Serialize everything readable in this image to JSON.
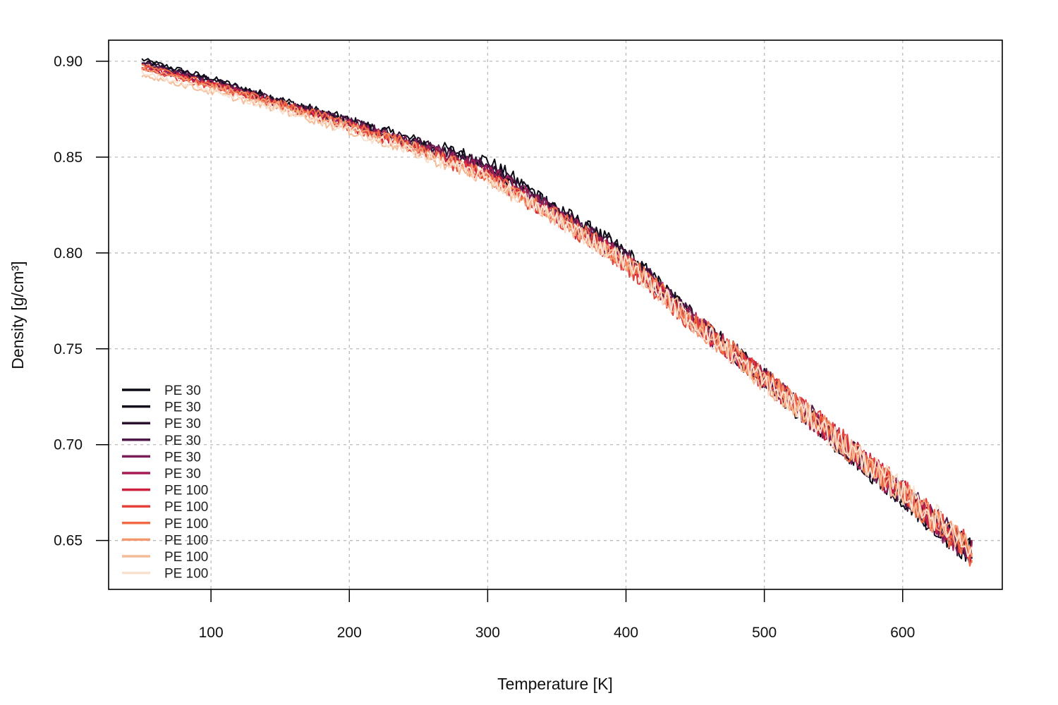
{
  "chart_data": {
    "type": "line",
    "title": "",
    "xlabel": "Temperature [K]",
    "ylabel": "Density [g/cm³]",
    "xlim": [
      26,
      672
    ],
    "ylim": [
      0.6245,
      0.911
    ],
    "xticks": [
      100,
      200,
      300,
      400,
      500,
      600
    ],
    "xtick_labels": [
      "100",
      "200",
      "300",
      "400",
      "500",
      "600"
    ],
    "yticks": [
      0.65,
      0.7,
      0.75,
      0.8,
      0.85,
      0.9
    ],
    "ytick_labels": [
      "0.65",
      "0.70",
      "0.75",
      "0.80",
      "0.85",
      "0.90"
    ],
    "grid": true,
    "legend_position": "bottom-left",
    "x": [
      50,
      100,
      150,
      200,
      250,
      300,
      350,
      400,
      450,
      500,
      550,
      600,
      650
    ],
    "series": [
      {
        "name": "PE 30",
        "color": "#0a0a14",
        "values": [
          0.901,
          0.891,
          0.88,
          0.869,
          0.858,
          0.848,
          0.823,
          0.8,
          0.765,
          0.734,
          0.703,
          0.673,
          0.643
        ]
      },
      {
        "name": "PE 30",
        "color": "#120b1c",
        "values": [
          0.9,
          0.89,
          0.879,
          0.868,
          0.857,
          0.845,
          0.822,
          0.799,
          0.765,
          0.735,
          0.704,
          0.674,
          0.644
        ]
      },
      {
        "name": "PE 30",
        "color": "#2c1030",
        "values": [
          0.9,
          0.89,
          0.879,
          0.868,
          0.857,
          0.845,
          0.821,
          0.798,
          0.764,
          0.734,
          0.704,
          0.674,
          0.643
        ]
      },
      {
        "name": "PE 30",
        "color": "#4e1746",
        "values": [
          0.899,
          0.889,
          0.879,
          0.868,
          0.856,
          0.845,
          0.821,
          0.798,
          0.765,
          0.735,
          0.705,
          0.675,
          0.644
        ]
      },
      {
        "name": "PE 30",
        "color": "#7a1d58",
        "values": [
          0.898,
          0.889,
          0.878,
          0.867,
          0.856,
          0.844,
          0.82,
          0.797,
          0.764,
          0.734,
          0.704,
          0.674,
          0.643
        ]
      },
      {
        "name": "PE 30",
        "color": "#a51c55",
        "values": [
          0.897,
          0.888,
          0.878,
          0.867,
          0.855,
          0.843,
          0.82,
          0.797,
          0.764,
          0.734,
          0.704,
          0.674,
          0.643
        ]
      },
      {
        "name": "PE 100",
        "color": "#cd1f3e",
        "values": [
          0.897,
          0.888,
          0.877,
          0.866,
          0.854,
          0.84,
          0.818,
          0.795,
          0.763,
          0.734,
          0.705,
          0.675,
          0.644
        ]
      },
      {
        "name": "PE 100",
        "color": "#e6413a",
        "values": [
          0.896,
          0.887,
          0.877,
          0.866,
          0.854,
          0.839,
          0.818,
          0.794,
          0.762,
          0.735,
          0.706,
          0.676,
          0.645
        ]
      },
      {
        "name": "PE 100",
        "color": "#f06b43",
        "values": [
          0.898,
          0.888,
          0.878,
          0.867,
          0.855,
          0.84,
          0.819,
          0.796,
          0.764,
          0.735,
          0.704,
          0.674,
          0.643
        ]
      },
      {
        "name": "PE 100",
        "color": "#f3976e",
        "values": [
          0.896,
          0.887,
          0.877,
          0.866,
          0.854,
          0.84,
          0.818,
          0.795,
          0.763,
          0.734,
          0.705,
          0.675,
          0.644
        ]
      },
      {
        "name": "PE 100",
        "color": "#f5bc98",
        "values": [
          0.893,
          0.884,
          0.875,
          0.864,
          0.852,
          0.838,
          0.818,
          0.795,
          0.763,
          0.733,
          0.704,
          0.675,
          0.646
        ]
      },
      {
        "name": "PE 100",
        "color": "#f9e1cf",
        "values": [
          0.894,
          0.885,
          0.875,
          0.864,
          0.852,
          0.839,
          0.818,
          0.795,
          0.763,
          0.733,
          0.704,
          0.676,
          0.647
        ]
      }
    ]
  }
}
